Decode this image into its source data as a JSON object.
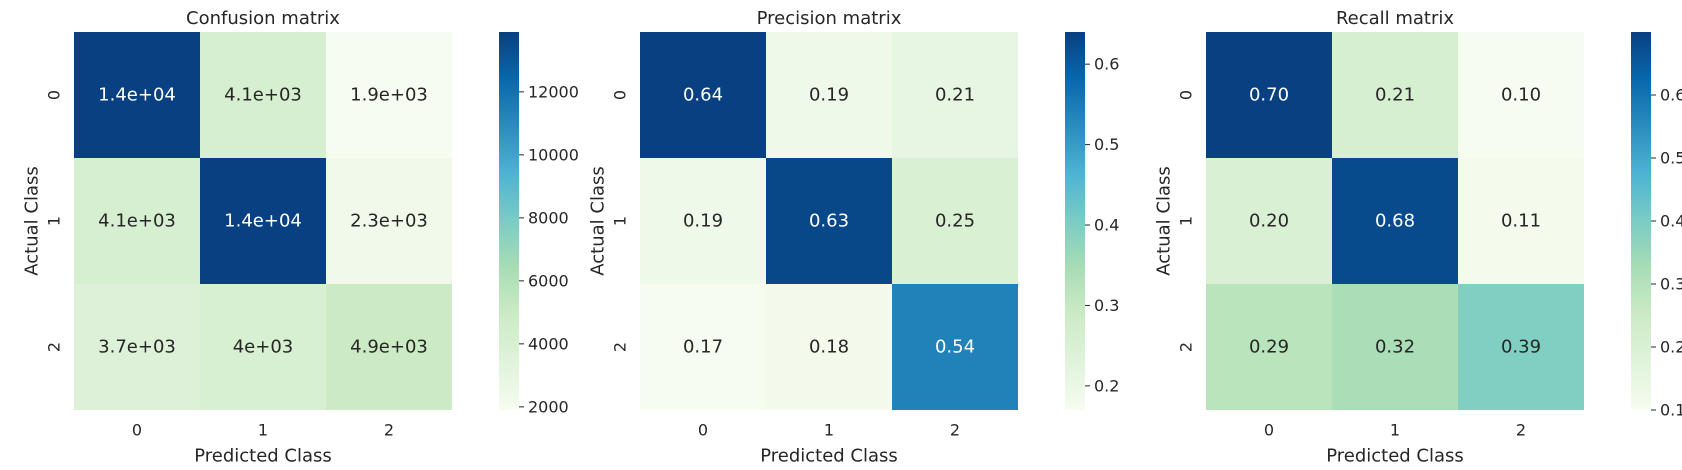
{
  "chart_data": [
    {
      "type": "heatmap",
      "title": "Confusion matrix",
      "xlabel": "Predicted Class",
      "ylabel": "Actual Class",
      "x_categories": [
        "0",
        "1",
        "2"
      ],
      "y_categories": [
        "0",
        "1",
        "2"
      ],
      "values": [
        [
          14000,
          4100,
          1900
        ],
        [
          4100,
          14000,
          2300
        ],
        [
          3700,
          4000,
          4900
        ]
      ],
      "annotations": [
        [
          "1.4e+04",
          "4.1e+03",
          "1.9e+03"
        ],
        [
          "4.1e+03",
          "1.4e+04",
          "2.3e+03"
        ],
        [
          "3.7e+03",
          "4e+03",
          "4.9e+03"
        ]
      ],
      "colorbar": {
        "min": 1900,
        "max": 13900,
        "ticks": [
          2000,
          4000,
          6000,
          8000,
          10000,
          12000
        ],
        "tick_labels": [
          "2000",
          "4000",
          "6000",
          "8000",
          "10000",
          "12000"
        ]
      },
      "colormap": "GnBu",
      "grid": false,
      "legend_position": "right"
    },
    {
      "type": "heatmap",
      "title": "Precision matrix",
      "xlabel": "Predicted Class",
      "ylabel": "Actual Class",
      "x_categories": [
        "0",
        "1",
        "2"
      ],
      "y_categories": [
        "0",
        "1",
        "2"
      ],
      "values": [
        [
          0.64,
          0.19,
          0.21
        ],
        [
          0.19,
          0.63,
          0.25
        ],
        [
          0.17,
          0.18,
          0.54
        ]
      ],
      "annotations": [
        [
          "0.64",
          "0.19",
          "0.21"
        ],
        [
          "0.19",
          "0.63",
          "0.25"
        ],
        [
          "0.17",
          "0.18",
          "0.54"
        ]
      ],
      "colorbar": {
        "min": 0.17,
        "max": 0.64,
        "ticks": [
          0.2,
          0.3,
          0.4,
          0.5,
          0.6
        ],
        "tick_labels": [
          "0.2",
          "0.3",
          "0.4",
          "0.5",
          "0.6"
        ]
      },
      "colormap": "GnBu",
      "grid": false,
      "legend_position": "right"
    },
    {
      "type": "heatmap",
      "title": "Recall matrix",
      "xlabel": "Predicted Class",
      "ylabel": "Actual Class",
      "x_categories": [
        "0",
        "1",
        "2"
      ],
      "y_categories": [
        "0",
        "1",
        "2"
      ],
      "values": [
        [
          0.7,
          0.21,
          0.1
        ],
        [
          0.2,
          0.68,
          0.11
        ],
        [
          0.29,
          0.32,
          0.39
        ]
      ],
      "annotations": [
        [
          "0.70",
          "0.21",
          "0.10"
        ],
        [
          "0.20",
          "0.68",
          "0.11"
        ],
        [
          "0.29",
          "0.32",
          "0.39"
        ]
      ],
      "colorbar": {
        "min": 0.1,
        "max": 0.7,
        "ticks": [
          0.1,
          0.2,
          0.3,
          0.4,
          0.5,
          0.6
        ],
        "tick_labels": [
          "0.1",
          "0.2",
          "0.3",
          "0.4",
          "0.5",
          "0.6"
        ]
      },
      "colormap": "GnBu",
      "grid": false,
      "legend_position": "right"
    }
  ]
}
